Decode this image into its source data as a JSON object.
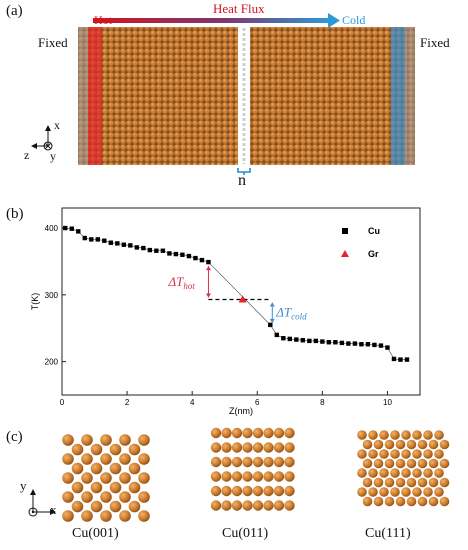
{
  "panels": {
    "a": "(a)",
    "b": "(b)",
    "c": "(c)"
  },
  "panel_a": {
    "fixed_left": "Fixed",
    "fixed_right": "Fixed",
    "hot": "Hot",
    "cold": "Cold",
    "heat_flux": "Heat Flux",
    "gap_label": "n",
    "axes": {
      "x": "x",
      "y": "y",
      "z": "z"
    },
    "colors": {
      "hot": "#e2262b",
      "cold": "#2f8fd6",
      "atom": "#c8772c",
      "flux_start": "#d0161e",
      "flux_end": "#2b9ad8"
    }
  },
  "chart_data": {
    "type": "scatter",
    "xlabel": "Z(nm)",
    "ylabel": "T(K)",
    "xlim": [
      0,
      11
    ],
    "ylim": [
      150,
      430
    ],
    "xticks": [
      "0",
      "2",
      "4",
      "6",
      "8",
      "10"
    ],
    "yticks": [
      "200",
      "300",
      "400"
    ],
    "series": [
      {
        "name": "Cu",
        "marker": "square",
        "color": "#000000",
        "x": [
          0.1,
          0.3,
          0.5,
          0.7,
          0.9,
          1.1,
          1.3,
          1.5,
          1.7,
          1.9,
          2.1,
          2.3,
          2.5,
          2.7,
          2.9,
          3.1,
          3.3,
          3.5,
          3.7,
          3.9,
          4.1,
          4.3,
          4.5,
          6.4,
          6.6,
          6.8,
          7.0,
          7.2,
          7.4,
          7.6,
          7.8,
          8.0,
          8.2,
          8.4,
          8.6,
          8.8,
          9.0,
          9.2,
          9.4,
          9.6,
          9.8,
          10.0,
          10.2,
          10.4,
          10.6
        ],
        "y": [
          400,
          399,
          395,
          385,
          383,
          383,
          381,
          378,
          377,
          375,
          374,
          371,
          370,
          367,
          366,
          366,
          362,
          361,
          360,
          358,
          355,
          352,
          349,
          255,
          240,
          235,
          234,
          233,
          232,
          231,
          231,
          230,
          229,
          229,
          228,
          227,
          227,
          226,
          226,
          225,
          224,
          221,
          204,
          203,
          203
        ]
      },
      {
        "name": "Gr",
        "marker": "triangle",
        "color": "#e8202a",
        "x": [
          5.55
        ],
        "y": [
          293
        ]
      }
    ],
    "annotations": {
      "dt_hot": "ΔT",
      "dt_hot_sub": "hot",
      "dt_cold": "ΔT",
      "dt_cold_sub": "cold",
      "hot_color": "#d5304a",
      "cold_color": "#3d8cd0"
    },
    "legend_placement": "top-right",
    "grid": false
  },
  "panel_c": {
    "labels": [
      "Cu(001)",
      "Cu(011)",
      "Cu(111)"
    ],
    "axes": {
      "x": "x",
      "y": "y"
    }
  }
}
